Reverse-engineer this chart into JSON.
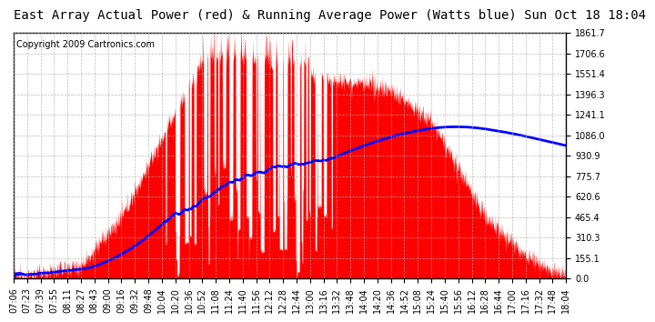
{
  "title": "East Array Actual Power (red) & Running Average Power (Watts blue) Sun Oct 18 18:04",
  "copyright": "Copyright 2009 Cartronics.com",
  "bg_color": "#ffffff",
  "plot_bg_color": "#ffffff",
  "grid_color": "#aaaaaa",
  "y_max": 1861.7,
  "y_min": 0.0,
  "y_ticks": [
    0.0,
    155.1,
    310.3,
    465.4,
    620.6,
    775.7,
    930.9,
    1086.0,
    1241.1,
    1396.3,
    1551.4,
    1706.6,
    1861.7
  ],
  "x_tick_labels": [
    "07:06",
    "07:23",
    "07:39",
    "07:55",
    "08:11",
    "08:27",
    "08:43",
    "09:00",
    "09:16",
    "09:32",
    "09:48",
    "10:04",
    "10:20",
    "10:36",
    "10:52",
    "11:08",
    "11:24",
    "11:40",
    "11:56",
    "12:12",
    "12:28",
    "12:44",
    "13:00",
    "13:16",
    "13:32",
    "13:48",
    "14:04",
    "14:20",
    "14:36",
    "14:52",
    "15:08",
    "15:24",
    "15:40",
    "15:56",
    "16:12",
    "16:28",
    "16:44",
    "17:00",
    "17:16",
    "17:32",
    "17:48",
    "18:04"
  ],
  "actual_color": "#ff0000",
  "avg_color": "#0000ff",
  "title_fontsize": 10,
  "copyright_fontsize": 7,
  "tick_fontsize": 7
}
